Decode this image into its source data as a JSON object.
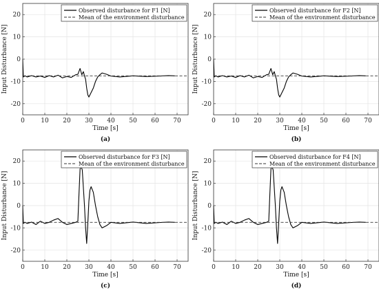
{
  "chart_data": [
    {
      "type": "line",
      "caption": "(a)",
      "xlabel": "Time [s]",
      "ylabel": "Input Disturbance [N]",
      "xlim": [
        0,
        75
      ],
      "ylim": [
        -25,
        25
      ],
      "xticks": [
        0,
        10,
        20,
        30,
        40,
        50,
        60,
        70
      ],
      "yticks": [
        -20,
        -10,
        0,
        10,
        20
      ],
      "grid": true,
      "legend": "top-right",
      "series": [
        {
          "name": "Observed disturbance for F1 [N]",
          "style": "solid",
          "color": "#000000",
          "x": [
            0,
            0.3,
            1,
            2,
            4,
            6,
            8,
            10,
            12,
            14,
            16,
            18,
            20,
            22,
            24,
            25,
            26,
            26.8,
            27.5,
            28,
            28.5,
            29,
            29.5,
            30,
            31,
            32,
            33,
            34,
            35,
            36,
            38,
            40,
            44,
            50,
            56,
            62,
            66,
            69
          ],
          "y": [
            0,
            -8,
            -7.5,
            -8,
            -7.4,
            -8,
            -7.6,
            -8.2,
            -7.4,
            -8,
            -7.2,
            -8.4,
            -7.8,
            -8.2,
            -7,
            -6.8,
            -4.2,
            -7,
            -5.6,
            -7.5,
            -9,
            -13,
            -16,
            -17,
            -15,
            -13,
            -10,
            -8,
            -7,
            -6.2,
            -6.8,
            -7.6,
            -8,
            -7.5,
            -7.8,
            -7.6,
            -7.4,
            -7.5
          ]
        },
        {
          "name": "Mean of the environment disturbance",
          "style": "dashed",
          "color": "#333333",
          "x": [
            0,
            75
          ],
          "y": [
            -7.5,
            -7.5
          ]
        }
      ]
    },
    {
      "type": "line",
      "caption": "(b)",
      "xlabel": "Time [s]",
      "ylabel": "Input Disturbance [N]",
      "xlim": [
        0,
        75
      ],
      "ylim": [
        -25,
        25
      ],
      "xticks": [
        0,
        10,
        20,
        30,
        40,
        50,
        60,
        70
      ],
      "yticks": [
        -20,
        -10,
        0,
        10,
        20
      ],
      "grid": true,
      "legend": "top-right",
      "series": [
        {
          "name": "Observed disturbance for F2 [N]",
          "style": "solid",
          "color": "#000000",
          "x": [
            0,
            0.3,
            1,
            2,
            4,
            6,
            8,
            10,
            12,
            14,
            16,
            18,
            20,
            22,
            24,
            25,
            26,
            26.8,
            27.5,
            28,
            28.5,
            29,
            29.5,
            30,
            31,
            32,
            33,
            34,
            35,
            36,
            38,
            40,
            44,
            50,
            56,
            62,
            66,
            69
          ],
          "y": [
            0,
            -8,
            -7.5,
            -8,
            -7.4,
            -8,
            -7.6,
            -8.2,
            -7.4,
            -8,
            -7.2,
            -8.4,
            -7.8,
            -8.2,
            -7,
            -6.8,
            -4.2,
            -7,
            -5.6,
            -7.5,
            -9,
            -13,
            -16,
            -17,
            -15,
            -13,
            -10,
            -8,
            -7,
            -6.2,
            -6.8,
            -7.6,
            -8,
            -7.5,
            -7.8,
            -7.6,
            -7.4,
            -7.5
          ]
        },
        {
          "name": "Mean of the environment disturbance",
          "style": "dashed",
          "color": "#333333",
          "x": [
            0,
            75
          ],
          "y": [
            -7.5,
            -7.5
          ]
        }
      ]
    },
    {
      "type": "line",
      "caption": "(c)",
      "xlabel": "Time [s]",
      "ylabel": "Input Disturbance [N]",
      "xlim": [
        0,
        75
      ],
      "ylim": [
        -25,
        25
      ],
      "xticks": [
        0,
        10,
        20,
        30,
        40,
        50,
        60,
        70
      ],
      "yticks": [
        -20,
        -10,
        0,
        10,
        20
      ],
      "grid": true,
      "legend": "top-right",
      "series": [
        {
          "name": "Observed disturbance for F3 [N]",
          "style": "solid",
          "color": "#000000",
          "x": [
            0,
            0.3,
            1,
            2,
            4,
            6,
            8,
            10,
            12,
            14,
            16,
            18,
            20,
            22,
            24,
            25,
            25.5,
            26,
            26.5,
            27,
            27.5,
            28,
            28.5,
            29,
            29.5,
            30,
            30.5,
            31,
            32,
            33,
            34,
            35,
            36,
            38,
            40,
            44,
            50,
            56,
            62,
            66,
            69
          ],
          "y": [
            0,
            -8,
            -7.5,
            -8,
            -7.4,
            -8.5,
            -7,
            -8,
            -7.5,
            -6.5,
            -5.8,
            -7.5,
            -8.5,
            -8,
            -7.5,
            -7,
            5,
            16.5,
            17.5,
            16,
            8,
            0,
            -10,
            -17,
            -8,
            2,
            7,
            8.5,
            6,
            0,
            -5,
            -8.5,
            -10,
            -9,
            -7.5,
            -8,
            -7.4,
            -8,
            -7.6,
            -7.4,
            -7.5
          ]
        },
        {
          "name": "Mean of the environment disturbance",
          "style": "dashed",
          "color": "#333333",
          "x": [
            0,
            75
          ],
          "y": [
            -7.5,
            -7.5
          ]
        }
      ]
    },
    {
      "type": "line",
      "caption": "(d)",
      "xlabel": "Time [s]",
      "ylabel": "Input Disturbance [N]",
      "xlim": [
        0,
        75
      ],
      "ylim": [
        -25,
        25
      ],
      "xticks": [
        0,
        10,
        20,
        30,
        40,
        50,
        60,
        70
      ],
      "yticks": [
        -20,
        -10,
        0,
        10,
        20
      ],
      "grid": true,
      "legend": "top-right",
      "series": [
        {
          "name": "Observed disturbance for F4 [N]",
          "style": "solid",
          "color": "#000000",
          "x": [
            0,
            0.3,
            1,
            2,
            4,
            6,
            8,
            10,
            12,
            14,
            16,
            18,
            20,
            22,
            24,
            25,
            25.5,
            26,
            26.5,
            27,
            27.5,
            28,
            28.5,
            29,
            29.5,
            30,
            30.5,
            31,
            32,
            33,
            34,
            35,
            36,
            38,
            40,
            44,
            50,
            56,
            62,
            66,
            69
          ],
          "y": [
            0,
            -8,
            -7.5,
            -8,
            -7.4,
            -8.5,
            -7,
            -8,
            -7.5,
            -6.5,
            -5.8,
            -7.5,
            -8.5,
            -8,
            -7.5,
            -7,
            5,
            16.5,
            17.5,
            16,
            8,
            0,
            -10,
            -17,
            -8,
            2,
            7,
            8.5,
            6,
            0,
            -5,
            -8.5,
            -10,
            -9,
            -7.5,
            -8,
            -7.4,
            -8,
            -7.6,
            -7.4,
            -7.5
          ]
        },
        {
          "name": "Mean of the environment disturbance",
          "style": "dashed",
          "color": "#333333",
          "x": [
            0,
            75
          ],
          "y": [
            -7.5,
            -7.5
          ]
        }
      ]
    }
  ]
}
